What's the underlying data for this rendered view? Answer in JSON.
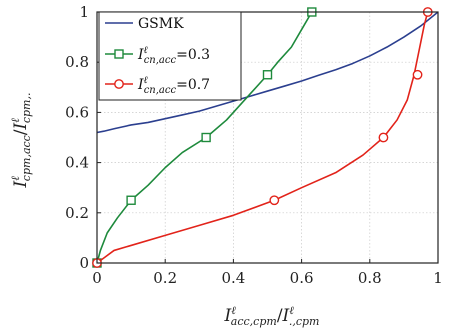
{
  "chart_data": {
    "type": "line",
    "xlim": [
      0,
      1
    ],
    "ylim": [
      0,
      1
    ],
    "x_ticks": [
      "0",
      "0.2",
      "0.4",
      "0.6",
      "0.8",
      "1"
    ],
    "y_ticks": [
      "0",
      "0.2",
      "0.4",
      "0.6",
      "0.8",
      "1"
    ],
    "xlabel": {
      "base": "I",
      "sup": "ℓ",
      "sub": "acc,cpm",
      "slash": "/",
      "base2": "I",
      "sup2": "ℓ",
      "sub2": ".,cpm"
    },
    "ylabel": {
      "base": "I",
      "sup": "ℓ",
      "sub": "cpm,acc",
      "slash": "/",
      "base2": "I",
      "sup2": "ℓ",
      "sub2": "cpm,."
    },
    "grid": true,
    "legend_position": "top-left",
    "series": [
      {
        "name": "GSMK",
        "legend": {
          "text": "GSMK"
        },
        "color": "#2b3f8f",
        "marker": "none",
        "x": [
          0,
          0.02,
          0.05,
          0.1,
          0.15,
          0.2,
          0.25,
          0.3,
          0.35,
          0.4,
          0.45,
          0.5,
          0.55,
          0.6,
          0.65,
          0.7,
          0.75,
          0.8,
          0.85,
          0.9,
          0.95,
          1.0
        ],
        "y": [
          0.52,
          0.525,
          0.535,
          0.55,
          0.56,
          0.575,
          0.59,
          0.605,
          0.625,
          0.645,
          0.665,
          0.685,
          0.705,
          0.725,
          0.748,
          0.77,
          0.795,
          0.825,
          0.86,
          0.9,
          0.945,
          1.0
        ]
      },
      {
        "name": "I_cn,acc=0.3",
        "legend": {
          "base": "I",
          "sup": "ℓ",
          "sub": "cn,acc",
          "suffix": "=0.3"
        },
        "color": "#1e8a3c",
        "marker": "square",
        "x": [
          0,
          0.01,
          0.03,
          0.06,
          0.1,
          0.15,
          0.2,
          0.25,
          0.32,
          0.38,
          0.44,
          0.5,
          0.53,
          0.57,
          0.6,
          0.63
        ],
        "y": [
          0,
          0.05,
          0.12,
          0.18,
          0.25,
          0.31,
          0.38,
          0.44,
          0.5,
          0.57,
          0.66,
          0.75,
          0.8,
          0.86,
          0.93,
          1.0
        ],
        "marker_points": [
          [
            0,
            0
          ],
          [
            0.1,
            0.25
          ],
          [
            0.32,
            0.5
          ],
          [
            0.5,
            0.75
          ],
          [
            0.63,
            1.0
          ]
        ]
      },
      {
        "name": "I_cn,acc=0.7",
        "legend": {
          "base": "I",
          "sup": "ℓ",
          "sub": "cn,acc",
          "suffix": "=0.7"
        },
        "color": "#e2231a",
        "marker": "circle",
        "x": [
          0,
          0.02,
          0.05,
          0.1,
          0.2,
          0.3,
          0.4,
          0.52,
          0.6,
          0.7,
          0.78,
          0.84,
          0.88,
          0.91,
          0.93,
          0.945,
          0.96,
          0.97
        ],
        "y": [
          0,
          0.02,
          0.05,
          0.07,
          0.11,
          0.15,
          0.19,
          0.25,
          0.3,
          0.36,
          0.43,
          0.5,
          0.57,
          0.65,
          0.75,
          0.85,
          0.95,
          1.0
        ],
        "marker_points": [
          [
            0,
            0
          ],
          [
            0.52,
            0.25
          ],
          [
            0.84,
            0.5
          ],
          [
            0.94,
            0.75
          ],
          [
            0.97,
            1.0
          ]
        ]
      }
    ]
  }
}
